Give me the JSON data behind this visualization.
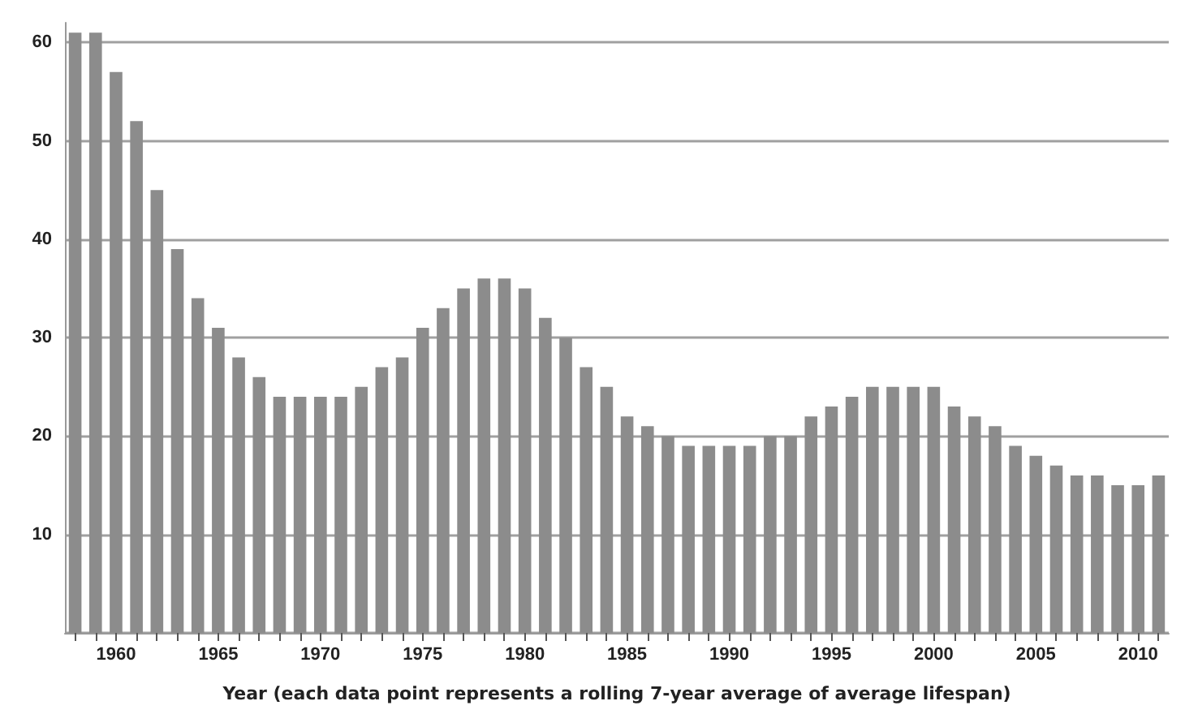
{
  "chart_data": {
    "type": "bar",
    "xlabel": "Year (each data point represents a rolling 7-year average of average lifespan)",
    "categories": [
      null,
      null,
      "1960",
      null,
      null,
      null,
      null,
      "1965",
      null,
      null,
      null,
      null,
      "1970",
      null,
      null,
      null,
      null,
      "1975",
      null,
      null,
      null,
      null,
      "1980",
      null,
      null,
      null,
      null,
      "1985",
      null,
      null,
      null,
      null,
      "1990",
      null,
      null,
      null,
      null,
      "1995",
      null,
      null,
      null,
      null,
      "2000",
      null,
      null,
      null,
      null,
      "2005",
      null,
      null,
      null,
      null,
      "2010",
      null
    ],
    "values": [
      61,
      61,
      57,
      52,
      45,
      39,
      34,
      31,
      28,
      26,
      24,
      24,
      24,
      24,
      25,
      27,
      28,
      31,
      33,
      35,
      36,
      36,
      35,
      32,
      30,
      27,
      25,
      22,
      21,
      20,
      19,
      19,
      19,
      19,
      20,
      20,
      22,
      23,
      24,
      25,
      25,
      25,
      25,
      23,
      22,
      21,
      19,
      18,
      17,
      16,
      16,
      15,
      15,
      16
    ],
    "color": "#8c8c8c",
    "ylim": [
      0,
      62
    ],
    "yticks": [
      {
        "value": 0,
        "label": null
      },
      10,
      20,
      30,
      40,
      50,
      60
    ],
    "grid": "y"
  }
}
